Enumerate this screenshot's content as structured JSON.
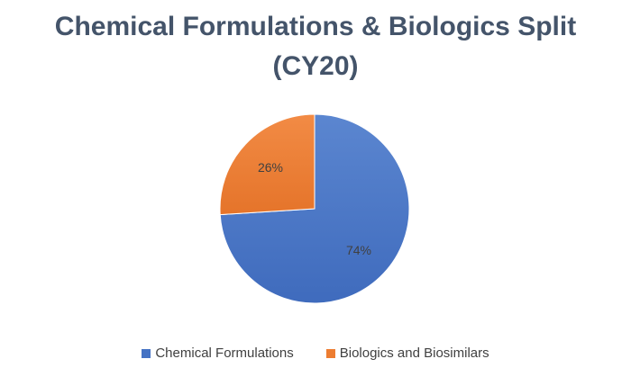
{
  "chart_data": {
    "type": "pie",
    "title_lines": [
      "Chemical Formulations & Biologics Split",
      "(CY20)"
    ],
    "slices": [
      {
        "name": "Chemical Formulations",
        "value": 74,
        "label": "74%",
        "color": "#4472c4"
      },
      {
        "name": "Biologics and Biosimilars",
        "value": 26,
        "label": "26%",
        "color": "#ed7d31"
      }
    ],
    "legend_position": "bottom"
  }
}
